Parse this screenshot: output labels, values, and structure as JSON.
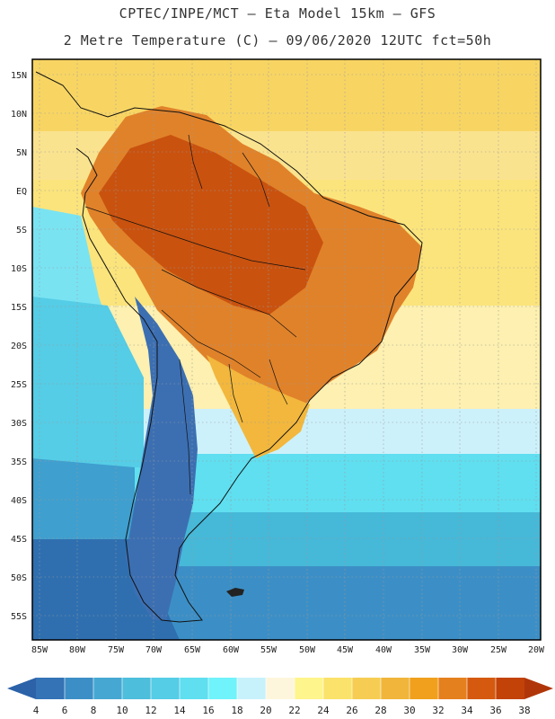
{
  "header": {
    "line1": "CPTEC/INPE/MCT –  Eta Model 15km – GFS",
    "line2": "2 Metre Temperature (C) – 09/06/2020 12UTC fct=50h"
  },
  "map": {
    "lat_ticks": [
      "15N",
      "10N",
      "5N",
      "EQ",
      "5S",
      "10S",
      "15S",
      "20S",
      "25S",
      "30S",
      "35S",
      "40S",
      "45S",
      "50S",
      "55S"
    ],
    "lon_ticks": [
      "85W",
      "80W",
      "75W",
      "70W",
      "65W",
      "60W",
      "55W",
      "50W",
      "45W",
      "40W",
      "35W",
      "30W",
      "25W",
      "20W"
    ],
    "regions": [
      {
        "name": "caribbean-sea",
        "label": "",
        "color": "#f5c652"
      },
      {
        "name": "north-atlantic",
        "label": "",
        "color": "#f8da6a"
      },
      {
        "name": "tropical-atlantic",
        "label": "",
        "color": "#fbe47c"
      },
      {
        "name": "subtropical-atlantic",
        "label": "",
        "color": "#fdf0b0"
      },
      {
        "name": "south-atlantic-cool",
        "label": "",
        "color": "#cdf1fb"
      },
      {
        "name": "south-atlantic-mid",
        "label": "",
        "color": "#5fdff0"
      },
      {
        "name": "south-atlantic-deep",
        "label": "",
        "color": "#46b8d8"
      },
      {
        "name": "south-atlantic-far",
        "label": "",
        "color": "#3c8fc6"
      },
      {
        "name": "pacific-north",
        "label": "",
        "color": "#7ae3f2"
      },
      {
        "name": "pacific-mid",
        "label": "",
        "color": "#55cde6"
      },
      {
        "name": "pacific-south",
        "label": "",
        "color": "#3f9fcf"
      },
      {
        "name": "pacific-far-south",
        "label": "",
        "color": "#2f6fb0"
      },
      {
        "name": "amazon-hot",
        "label": "",
        "color": "#c9520f"
      },
      {
        "name": "brazil-warm",
        "label": "",
        "color": "#e0822a"
      },
      {
        "name": "southern-brazil",
        "label": "",
        "color": "#f2b73c"
      },
      {
        "name": "andes-cold",
        "label": "",
        "color": "#3c6fb2"
      }
    ]
  },
  "colorbar": {
    "labels": [
      "4",
      "6",
      "8",
      "10",
      "12",
      "14",
      "16",
      "18",
      "20",
      "22",
      "24",
      "26",
      "28",
      "30",
      "32",
      "34",
      "36",
      "38"
    ],
    "colors": [
      "#2b62a8",
      "#3373b6",
      "#3c8fc6",
      "#46a8d2",
      "#4dbedc",
      "#55cde6",
      "#5fdff0",
      "#70f3fb",
      "#c8f2fb",
      "#fdf6dc",
      "#fef58c",
      "#fbe26a",
      "#f6cd52",
      "#f0b53a",
      "#f0a01c",
      "#e5801e",
      "#d55a0f",
      "#c24208",
      "#b0360a"
    ]
  }
}
